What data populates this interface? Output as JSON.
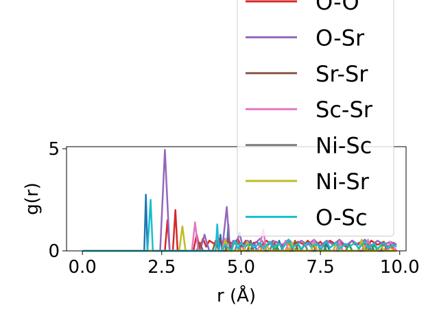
{
  "chart_data": {
    "type": "line",
    "xlabel": "r (Å)",
    "ylabel": "g(r)",
    "xlim": [
      -0.5,
      10.2
    ],
    "ylim": [
      0,
      5.1
    ],
    "xticks": [
      {
        "value": 0.0,
        "label": "0.0"
      },
      {
        "value": 2.5,
        "label": "2.5"
      },
      {
        "value": 5.0,
        "label": "5.0"
      },
      {
        "value": 7.5,
        "label": "7.5"
      },
      {
        "value": 10.0,
        "label": "10.0"
      }
    ],
    "yticks": [
      {
        "value": 0,
        "label": "0"
      },
      {
        "value": 5,
        "label": "5"
      }
    ],
    "grid": false,
    "legend": {
      "placement": "upper-right, extending above the axes",
      "entries": [
        "O-O",
        "O-Sr",
        "Sr-Sr",
        "Sc-Sr",
        "Ni-Sc",
        "Ni-Sr",
        "O-Sc"
      ]
    },
    "series": [
      {
        "name": "",
        "color": "#1f77b4",
        "x": [
          0.0,
          1.7,
          1.95,
          2.0,
          2.05,
          2.15,
          3.0,
          4.2,
          4.3,
          4.35,
          4.4,
          4.55,
          4.6,
          4.65,
          4.7,
          5.3,
          5.4,
          5.5,
          6.1,
          6.2,
          6.3,
          6.9,
          7.0,
          7.1,
          7.6,
          7.7,
          7.8,
          8.3,
          8.4,
          8.5,
          9.0,
          9.1,
          9.2,
          9.6,
          9.7,
          9.9
        ],
        "y": [
          0.0,
          0.0,
          0.0,
          2.75,
          0.0,
          0.0,
          0.0,
          0.0,
          0.0,
          0.8,
          0.0,
          0.0,
          1.3,
          0.0,
          0.0,
          0.0,
          0.4,
          0.0,
          0.0,
          0.5,
          0.0,
          0.0,
          0.35,
          0.0,
          0.0,
          0.3,
          0.0,
          0.0,
          0.35,
          0.0,
          0.0,
          0.3,
          0.0,
          0.0,
          0.25,
          0.0
        ]
      },
      {
        "name": "",
        "color": "#ff7f0e",
        "x": [
          0.0,
          4.9,
          5.0,
          5.1,
          5.6,
          5.7,
          5.8,
          6.4,
          6.5,
          6.6,
          7.2,
          7.3,
          7.4,
          8.0,
          8.1,
          8.2,
          8.8,
          8.9,
          9.0,
          9.5,
          9.6,
          9.9
        ],
        "y": [
          0.0,
          0.0,
          0.35,
          0.0,
          0.0,
          0.3,
          0.0,
          0.0,
          0.4,
          0.0,
          0.0,
          0.3,
          0.0,
          0.0,
          0.35,
          0.0,
          0.0,
          0.3,
          0.0,
          0.0,
          0.25,
          0.0
        ]
      },
      {
        "name": "",
        "color": "#2ca02c",
        "x": [
          0.0,
          4.4,
          4.5,
          4.6,
          5.2,
          5.3,
          5.4,
          6.0,
          6.1,
          6.2,
          6.7,
          6.8,
          6.9,
          7.5,
          7.6,
          7.7,
          8.3,
          8.4,
          8.5,
          9.1,
          9.2,
          9.3,
          9.9
        ],
        "y": [
          0.0,
          0.0,
          0.3,
          0.0,
          0.0,
          0.4,
          0.0,
          0.0,
          0.3,
          0.0,
          0.0,
          0.35,
          0.0,
          0.0,
          0.3,
          0.0,
          0.0,
          0.35,
          0.0,
          0.0,
          0.3,
          0.0,
          0.0
        ]
      },
      {
        "name": "O-O",
        "color": "#d62728",
        "x": [
          0.0,
          2.5,
          2.6,
          2.68,
          2.75,
          2.85,
          2.93,
          3.0,
          3.5,
          3.6,
          3.7,
          3.8,
          3.9,
          4.0,
          4.2,
          4.3,
          4.5,
          4.6,
          4.75,
          4.9,
          5.0,
          5.15,
          5.3,
          5.5,
          5.6,
          5.8,
          6.0,
          6.1,
          6.3,
          6.5,
          6.6,
          6.8,
          7.0,
          7.1,
          7.3,
          7.5,
          7.6,
          7.8,
          8.0,
          8.1,
          8.3,
          8.5,
          8.6,
          8.8,
          9.0,
          9.1,
          9.3,
          9.5,
          9.6,
          9.8,
          9.9
        ],
        "y": [
          0.0,
          0.0,
          0.0,
          1.5,
          0.0,
          0.0,
          2.0,
          0.0,
          0.0,
          0.8,
          0.1,
          0.6,
          0.2,
          0.5,
          0.3,
          0.6,
          0.2,
          0.5,
          0.3,
          0.6,
          0.2,
          0.5,
          0.3,
          0.45,
          0.2,
          0.5,
          0.25,
          0.45,
          0.2,
          0.5,
          0.25,
          0.45,
          0.3,
          0.5,
          0.2,
          0.45,
          0.25,
          0.5,
          0.3,
          0.45,
          0.2,
          0.5,
          0.3,
          0.45,
          0.25,
          0.5,
          0.3,
          0.45,
          0.2,
          0.4,
          0.3
        ]
      },
      {
        "name": "O-Sr",
        "color": "#9467bd",
        "x": [
          0.0,
          2.3,
          2.45,
          2.6,
          2.75,
          3.0,
          3.7,
          3.8,
          3.85,
          3.9,
          4.0,
          4.4,
          4.55,
          4.65,
          4.75,
          4.85,
          4.95,
          5.05,
          5.2,
          5.4,
          5.6,
          5.8,
          6.0,
          6.3,
          6.5,
          6.7,
          6.9,
          7.1,
          7.3,
          7.5,
          7.7,
          7.9,
          8.1,
          8.3,
          8.5,
          8.7,
          8.9,
          9.1,
          9.3,
          9.5,
          9.7,
          9.9
        ],
        "y": [
          0.0,
          0.0,
          0.0,
          4.95,
          0.0,
          0.0,
          0.0,
          0.5,
          0.8,
          0.5,
          0.0,
          0.0,
          2.15,
          0.0,
          0.5,
          0.3,
          0.9,
          0.2,
          0.5,
          0.3,
          0.6,
          0.2,
          0.5,
          0.3,
          0.55,
          0.25,
          0.5,
          0.3,
          0.55,
          0.25,
          0.5,
          0.3,
          0.55,
          0.25,
          0.5,
          0.3,
          0.55,
          0.25,
          0.5,
          0.3,
          0.45,
          0.3
        ]
      },
      {
        "name": "Sr-Sr",
        "color": "#8c564b",
        "x": [
          0.0,
          3.6,
          3.7,
          3.8,
          4.1,
          4.2,
          4.3,
          4.5,
          4.6,
          4.7,
          5.2,
          5.3,
          5.4,
          5.9,
          6.0,
          6.1,
          6.6,
          6.7,
          6.8,
          7.3,
          7.4,
          7.5,
          8.0,
          8.1,
          8.2,
          8.7,
          8.8,
          8.9,
          9.4,
          9.5,
          9.6,
          9.9
        ],
        "y": [
          0.0,
          0.0,
          0.4,
          0.0,
          0.0,
          0.5,
          0.0,
          0.0,
          0.6,
          0.0,
          0.0,
          0.5,
          0.0,
          0.0,
          0.4,
          0.0,
          0.0,
          0.5,
          0.0,
          0.0,
          0.4,
          0.0,
          0.0,
          0.5,
          0.0,
          0.0,
          0.4,
          0.0,
          0.0,
          0.4,
          0.0,
          0.0
        ]
      },
      {
        "name": "Sc-Sr",
        "color": "#e377c2",
        "x": [
          0.0,
          3.3,
          3.45,
          3.55,
          3.65,
          3.9,
          4.4,
          4.5,
          4.6,
          5.5,
          5.6,
          5.7,
          5.8,
          6.3,
          6.4,
          6.5,
          7.2,
          7.3,
          7.4,
          8.0,
          8.1,
          8.2,
          8.9,
          9.0,
          9.1,
          9.6,
          9.7,
          9.9
        ],
        "y": [
          0.0,
          0.0,
          0.0,
          1.4,
          0.0,
          0.0,
          0.0,
          0.6,
          0.0,
          0.0,
          0.3,
          1.05,
          0.0,
          0.0,
          0.5,
          0.0,
          0.0,
          0.55,
          0.0,
          0.0,
          0.5,
          0.0,
          0.0,
          0.55,
          0.0,
          0.0,
          0.45,
          0.0
        ]
      },
      {
        "name": "Ni-Sc",
        "color": "#7f7f7f",
        "x": [
          0.0,
          4.8,
          4.9,
          5.0,
          5.9,
          6.0,
          6.1,
          6.9,
          7.0,
          7.1,
          7.9,
          8.0,
          8.1,
          8.9,
          9.0,
          9.1,
          9.9
        ],
        "y": [
          0.0,
          0.0,
          0.45,
          0.0,
          0.0,
          0.4,
          0.0,
          0.0,
          0.4,
          0.0,
          0.0,
          0.35,
          0.0,
          0.0,
          0.35,
          0.0,
          0.0
        ]
      },
      {
        "name": "Ni-Sr",
        "color": "#bcbd22",
        "x": [
          0.0,
          2.95,
          3.05,
          3.15,
          3.25,
          3.35,
          4.4,
          4.5,
          4.6,
          5.1,
          5.2,
          5.3,
          5.7,
          5.8,
          5.9,
          6.5,
          6.6,
          6.7,
          7.2,
          7.3,
          7.4,
          7.9,
          8.0,
          8.1,
          8.7,
          8.8,
          8.9,
          9.3,
          9.4,
          9.5,
          9.9
        ],
        "y": [
          0.0,
          0.0,
          0.0,
          1.2,
          0.0,
          0.0,
          0.0,
          0.5,
          0.0,
          0.0,
          0.45,
          0.0,
          0.0,
          0.3,
          0.0,
          0.0,
          0.4,
          0.0,
          0.0,
          0.35,
          0.0,
          0.0,
          0.4,
          0.0,
          0.0,
          0.55,
          0.0,
          0.0,
          0.3,
          0.0,
          0.0
        ]
      },
      {
        "name": "O-Sc",
        "color": "#17becf",
        "x": [
          0.0,
          1.95,
          2.05,
          2.15,
          2.22,
          2.3,
          3.0,
          4.1,
          4.2,
          4.25,
          4.3,
          4.4,
          4.5,
          4.7,
          4.8,
          4.9,
          5.0,
          5.1,
          5.3,
          5.4,
          5.6,
          5.7,
          5.9,
          6.0,
          6.2,
          6.3,
          6.5,
          6.6,
          6.8,
          6.9,
          7.1,
          7.2,
          7.4,
          7.5,
          7.7,
          7.8,
          8.0,
          8.1,
          8.3,
          8.4,
          8.6,
          8.7,
          8.9,
          9.0,
          9.2,
          9.3,
          9.5,
          9.6,
          9.8,
          9.9
        ],
        "y": [
          0.0,
          0.0,
          0.0,
          2.5,
          0.0,
          0.0,
          0.0,
          0.0,
          0.0,
          1.3,
          0.0,
          0.0,
          0.3,
          0.0,
          0.5,
          0.1,
          0.4,
          0.2,
          0.35,
          0.15,
          0.4,
          0.1,
          0.45,
          0.15,
          0.35,
          0.1,
          0.55,
          0.15,
          0.35,
          0.1,
          0.4,
          0.2,
          0.35,
          0.1,
          0.45,
          0.15,
          0.4,
          0.1,
          0.35,
          0.2,
          0.4,
          0.1,
          0.45,
          0.15,
          0.35,
          0.1,
          0.4,
          0.15,
          0.3,
          0.2
        ]
      }
    ]
  }
}
